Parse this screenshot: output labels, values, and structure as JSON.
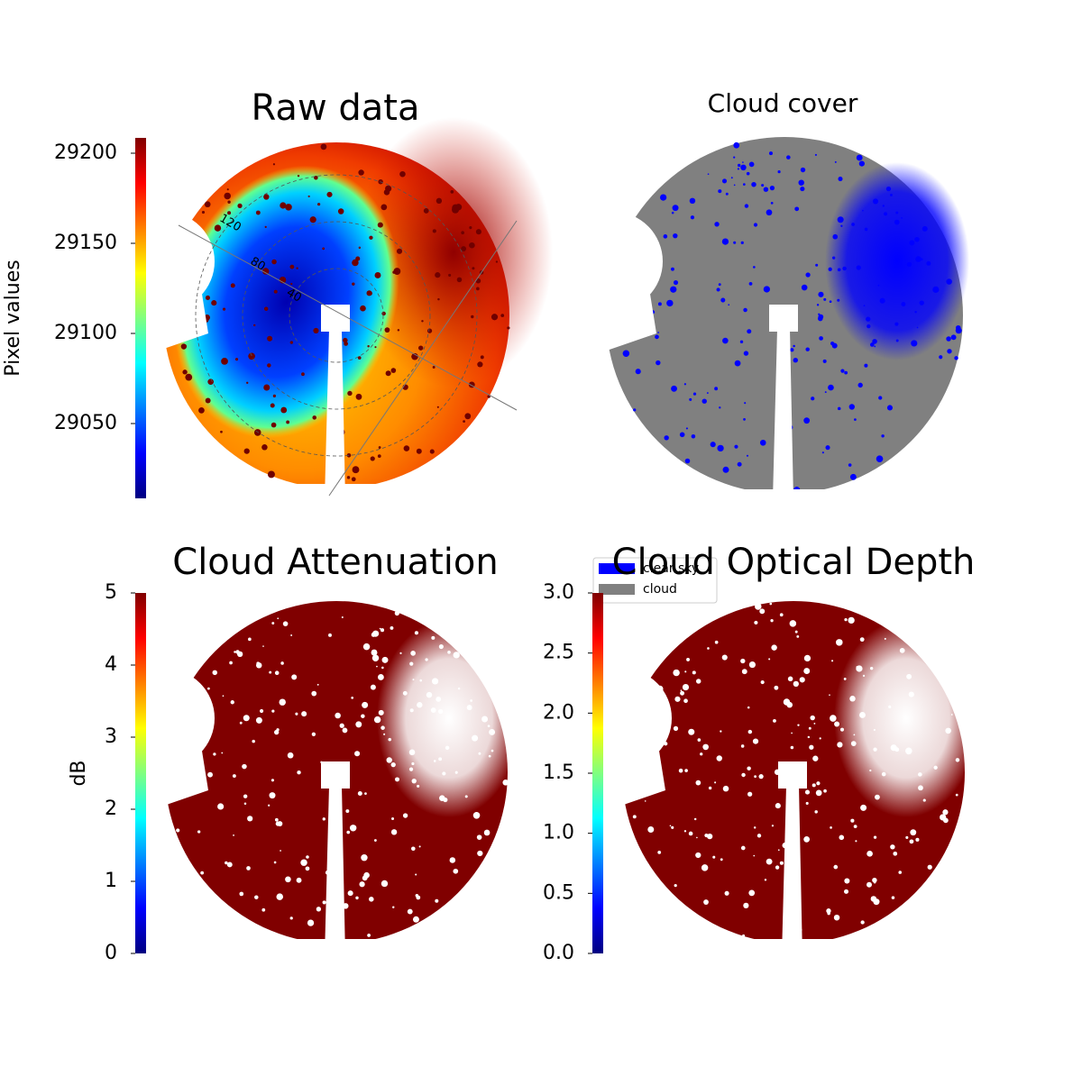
{
  "chart_data": [
    {
      "type": "image",
      "title": "Raw data",
      "colorbar_label": "Pixel values",
      "colormap": "jet",
      "clim": [
        29008.5,
        29208.5
      ],
      "cticks": [
        29050,
        29100,
        29150,
        29200
      ],
      "polar_ticks": [
        40,
        80,
        120
      ]
    },
    {
      "type": "image",
      "title": "Cloud cover",
      "series": [
        {
          "name": "clear sky",
          "color": "#0000ff"
        },
        {
          "name": "cloud",
          "color": "#808080"
        }
      ]
    },
    {
      "type": "image",
      "title": "Cloud Attenuation",
      "colorbar_label": "dB",
      "colormap": "jet",
      "clim": [
        0,
        5
      ],
      "cticks": [
        0,
        1,
        2,
        3,
        4,
        5
      ]
    },
    {
      "type": "image",
      "title": "Cloud Optical Depth",
      "colormap": "jet",
      "clim": [
        0,
        3
      ],
      "cticks": [
        {
          "value": 0,
          "label": "0.0"
        },
        0.5,
        {
          "value": 1,
          "label": "1.0"
        },
        1.5,
        {
          "value": 2,
          "label": "2.0"
        },
        2.5,
        {
          "value": 3,
          "label": "3.0"
        }
      ]
    }
  ]
}
